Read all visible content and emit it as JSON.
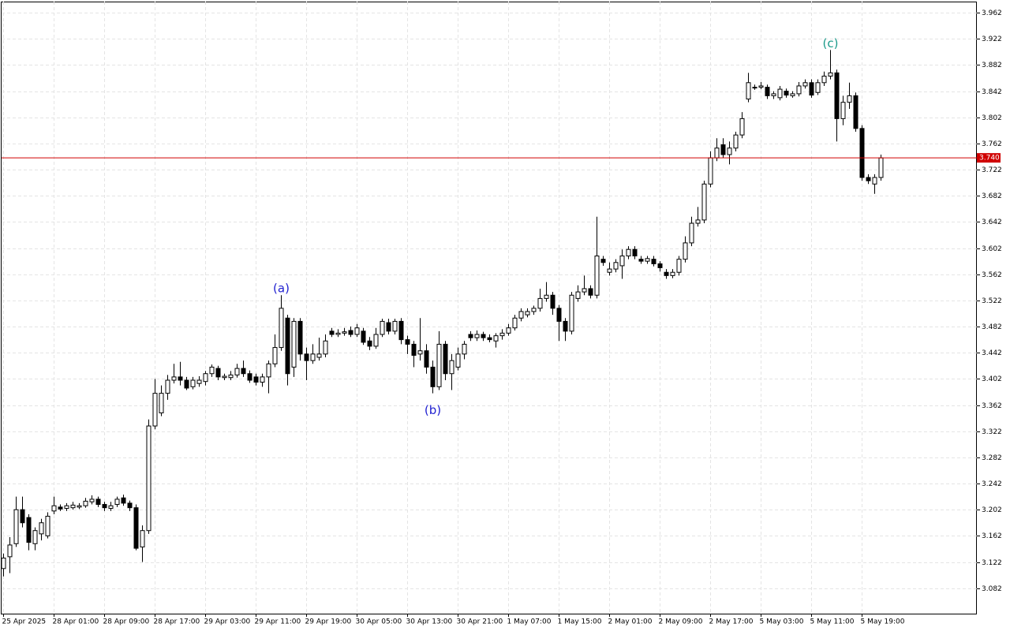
{
  "chart_data": {
    "type": "candlestick",
    "categories": [
      "25 Apr 2025",
      null,
      null,
      null,
      null,
      null,
      null,
      null,
      "28 Apr 01:00",
      null,
      null,
      null,
      null,
      null,
      null,
      null,
      "28 Apr 09:00",
      null,
      null,
      null,
      null,
      null,
      null,
      null,
      "28 Apr 17:00",
      null,
      null,
      null,
      null,
      null,
      null,
      null,
      "29 Apr 03:00",
      null,
      null,
      null,
      null,
      null,
      null,
      null,
      "29 Apr 11:00",
      null,
      null,
      null,
      null,
      null,
      null,
      null,
      "29 Apr 19:00",
      null,
      null,
      null,
      null,
      null,
      null,
      null,
      "30 Apr 05:00",
      null,
      null,
      null,
      null,
      null,
      null,
      null,
      "30 Apr 13:00",
      null,
      null,
      null,
      null,
      null,
      null,
      null,
      "30 Apr 21:00",
      null,
      null,
      null,
      null,
      null,
      null,
      null,
      "1 May 07:00",
      null,
      null,
      null,
      null,
      null,
      null,
      null,
      "1 May 15:00",
      null,
      null,
      null,
      null,
      null,
      null,
      null,
      "2 May 01:00",
      null,
      null,
      null,
      null,
      null,
      null,
      null,
      "2 May 09:00",
      null,
      null,
      null,
      null,
      null,
      null,
      null,
      "2 May 17:00",
      null,
      null,
      null,
      null,
      null,
      null,
      null,
      "5 May 03:00",
      null,
      null,
      null,
      null,
      null,
      null,
      null,
      "5 May 11:00",
      null,
      null,
      null,
      null,
      null,
      null,
      null,
      "5 May 19:00",
      null,
      null,
      null
    ],
    "open": [
      3.112,
      3.13,
      3.15,
      3.202,
      3.19,
      3.15,
      3.165,
      3.162,
      3.2,
      3.206,
      3.204,
      3.205,
      3.206,
      3.208,
      3.214,
      3.218,
      3.21,
      3.204,
      3.21,
      3.22,
      3.212,
      3.205,
      3.145,
      3.17,
      3.33,
      3.35,
      3.38,
      3.4,
      3.405,
      3.4,
      3.39,
      3.395,
      3.398,
      3.41,
      3.418,
      3.404,
      3.404,
      3.408,
      3.418,
      3.41,
      3.405,
      3.397,
      3.405,
      3.425,
      3.45,
      3.495,
      3.42,
      3.49,
      3.44,
      3.43,
      3.435,
      3.44,
      3.475,
      3.47,
      3.472,
      3.476,
      3.47,
      3.475,
      3.46,
      3.452,
      3.47,
      3.488,
      3.475,
      3.49,
      3.462,
      3.455,
      3.44,
      3.445,
      3.42,
      3.39,
      3.455,
      3.41,
      3.42,
      3.44,
      3.47,
      3.465,
      3.47,
      3.465,
      3.46,
      3.468,
      3.472,
      3.48,
      3.495,
      3.5,
      3.505,
      3.51,
      3.525,
      3.53,
      3.51,
      3.49,
      3.475,
      3.525,
      3.535,
      3.54,
      3.53,
      3.585,
      3.565,
      3.57,
      3.575,
      3.59,
      3.6,
      3.585,
      3.582,
      3.585,
      3.578,
      3.565,
      3.56,
      3.565,
      3.585,
      3.61,
      3.64,
      3.645,
      3.7,
      3.74,
      3.76,
      3.745,
      3.755,
      3.775,
      3.83,
      3.848,
      3.848,
      3.848,
      3.835,
      3.832,
      3.842,
      3.835,
      3.838,
      3.85,
      3.855,
      3.84,
      3.855,
      3.865,
      3.87,
      3.8,
      3.825,
      3.835,
      3.785,
      3.71,
      3.7,
      3.71
    ],
    "high": [
      3.135,
      3.16,
      3.222,
      3.222,
      3.195,
      3.175,
      3.188,
      3.198,
      3.222,
      3.21,
      3.212,
      3.214,
      3.212,
      3.22,
      3.224,
      3.222,
      3.214,
      3.214,
      3.222,
      3.225,
      3.216,
      3.21,
      3.178,
      3.34,
      3.402,
      3.392,
      3.408,
      3.425,
      3.428,
      3.405,
      3.405,
      3.406,
      3.414,
      3.424,
      3.422,
      3.41,
      3.414,
      3.425,
      3.43,
      3.415,
      3.41,
      3.41,
      3.43,
      3.47,
      3.53,
      3.5,
      3.495,
      3.495,
      3.45,
      3.455,
      3.465,
      3.47,
      3.48,
      3.478,
      3.48,
      3.482,
      3.486,
      3.48,
      3.466,
      3.48,
      3.494,
      3.494,
      3.494,
      3.495,
      3.468,
      3.46,
      3.495,
      3.455,
      3.43,
      3.475,
      3.46,
      3.44,
      3.45,
      3.46,
      3.475,
      3.476,
      3.474,
      3.47,
      3.472,
      3.478,
      3.486,
      3.5,
      3.51,
      3.51,
      3.514,
      3.54,
      3.55,
      3.535,
      3.515,
      3.495,
      3.535,
      3.545,
      3.56,
      3.545,
      3.65,
      3.59,
      3.58,
      3.585,
      3.6,
      3.605,
      3.605,
      3.59,
      3.59,
      3.59,
      3.582,
      3.57,
      3.57,
      3.59,
      3.62,
      3.65,
      3.665,
      3.705,
      3.75,
      3.77,
      3.77,
      3.765,
      3.78,
      3.81,
      3.87,
      3.852,
      3.856,
      3.852,
      3.842,
      3.85,
      3.846,
      3.842,
      3.856,
      3.86,
      3.86,
      3.86,
      3.872,
      3.905,
      3.875,
      3.835,
      3.855,
      3.84,
      3.79,
      3.715,
      3.715,
      3.745
    ],
    "low": [
      3.1,
      3.105,
      3.145,
      3.175,
      3.14,
      3.14,
      3.155,
      3.158,
      3.195,
      3.2,
      3.2,
      3.202,
      3.203,
      3.205,
      3.21,
      3.206,
      3.2,
      3.2,
      3.206,
      3.208,
      3.2,
      3.14,
      3.122,
      3.165,
      3.325,
      3.345,
      3.37,
      3.395,
      3.392,
      3.385,
      3.386,
      3.39,
      3.392,
      3.405,
      3.4,
      3.4,
      3.4,
      3.404,
      3.405,
      3.396,
      3.392,
      3.39,
      3.38,
      3.42,
      3.445,
      3.392,
      3.405,
      3.43,
      3.4,
      3.425,
      3.43,
      3.435,
      3.466,
      3.466,
      3.468,
      3.466,
      3.466,
      3.454,
      3.446,
      3.448,
      3.466,
      3.47,
      3.47,
      3.455,
      3.44,
      3.42,
      3.43,
      3.41,
      3.38,
      3.385,
      3.4,
      3.385,
      3.415,
      3.432,
      3.46,
      3.46,
      3.46,
      3.458,
      3.45,
      3.462,
      3.468,
      3.476,
      3.49,
      3.496,
      3.5,
      3.505,
      3.52,
      3.5,
      3.46,
      3.46,
      3.47,
      3.52,
      3.53,
      3.525,
      3.525,
      3.575,
      3.56,
      3.565,
      3.555,
      3.585,
      3.585,
      3.578,
      3.578,
      3.574,
      3.566,
      3.555,
      3.556,
      3.56,
      3.58,
      3.605,
      3.635,
      3.64,
      3.695,
      3.735,
      3.74,
      3.73,
      3.75,
      3.77,
      3.825,
      3.844,
      3.845,
      3.83,
      3.83,
      3.828,
      3.832,
      3.832,
      3.834,
      3.846,
      3.832,
      3.836,
      3.85,
      3.86,
      3.765,
      3.79,
      3.815,
      3.78,
      3.705,
      3.7,
      3.685,
      3.705
    ],
    "close": [
      3.128,
      3.148,
      3.202,
      3.182,
      3.152,
      3.17,
      3.182,
      3.192,
      3.208,
      3.203,
      3.208,
      3.209,
      3.208,
      3.215,
      3.218,
      3.21,
      3.205,
      3.208,
      3.218,
      3.212,
      3.205,
      3.143,
      3.17,
      3.33,
      3.38,
      3.38,
      3.4,
      3.405,
      3.4,
      3.388,
      3.4,
      3.4,
      3.41,
      3.42,
      3.405,
      3.406,
      3.408,
      3.418,
      3.41,
      3.4,
      3.397,
      3.405,
      3.425,
      3.45,
      3.51,
      3.41,
      3.49,
      3.44,
      3.43,
      3.44,
      3.44,
      3.46,
      3.47,
      3.472,
      3.474,
      3.47,
      3.48,
      3.458,
      3.452,
      3.47,
      3.49,
      3.475,
      3.49,
      3.462,
      3.455,
      3.438,
      3.445,
      3.42,
      3.39,
      3.455,
      3.41,
      3.43,
      3.44,
      3.455,
      3.465,
      3.47,
      3.465,
      3.462,
      3.468,
      3.472,
      3.48,
      3.495,
      3.505,
      3.505,
      3.51,
      3.525,
      3.53,
      3.51,
      3.49,
      3.475,
      3.53,
      3.535,
      3.54,
      3.53,
      3.59,
      3.58,
      3.57,
      3.58,
      3.59,
      3.6,
      3.59,
      3.582,
      3.586,
      3.578,
      3.572,
      3.56,
      3.565,
      3.585,
      3.61,
      3.64,
      3.645,
      3.7,
      3.74,
      3.755,
      3.745,
      3.755,
      3.775,
      3.8,
      3.855,
      3.848,
      3.85,
      3.835,
      3.838,
      3.845,
      3.836,
      3.838,
      3.85,
      3.855,
      3.836,
      3.855,
      3.865,
      3.87,
      3.8,
      3.825,
      3.835,
      3.785,
      3.71,
      3.705,
      3.71,
      3.74
    ],
    "ylim": [
      3.043,
      3.979
    ],
    "yticks": [
      3.962,
      3.922,
      3.882,
      3.842,
      3.802,
      3.762,
      3.722,
      3.682,
      3.642,
      3.602,
      3.562,
      3.522,
      3.482,
      3.442,
      3.402,
      3.362,
      3.322,
      3.282,
      3.242,
      3.202,
      3.162,
      3.122,
      3.082
    ],
    "current_price": {
      "value": 3.74,
      "label": "3.740"
    },
    "annotations": [
      {
        "text": "(a)",
        "color": "#1f1fd0"
      },
      {
        "text": "(b)",
        "color": "#1f1fd0"
      },
      {
        "text": "(c)",
        "color": "#1a9a8a"
      }
    ],
    "grid": true
  }
}
